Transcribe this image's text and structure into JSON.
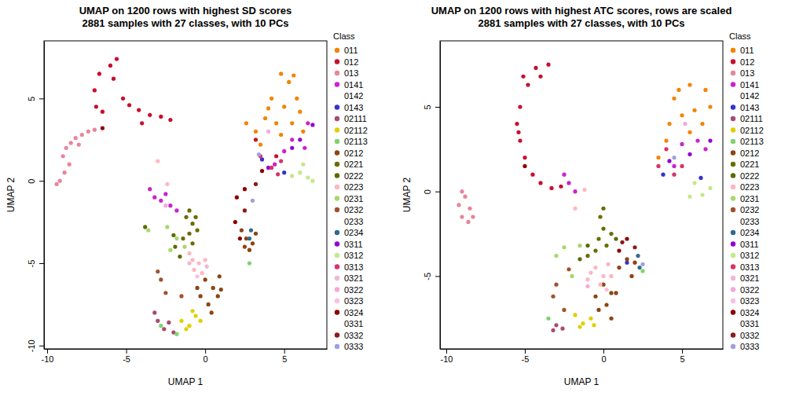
{
  "chart_data": [
    {
      "type": "scatter",
      "title": "UMAP on 1200 rows with highest SD scores",
      "subtitle": "2881 samples with 27 classes, with 10 PCs",
      "x_label": "UMAP 1",
      "y_label": "UMAP 2",
      "legend_title": "Class",
      "legend": "right",
      "marker": "circle",
      "xlim": [
        -10.2,
        7.7
      ],
      "ylim": [
        -10.2,
        8.5
      ],
      "xticks": [
        -10,
        -5,
        0,
        5
      ],
      "yticks": [
        -10,
        -5,
        0,
        5
      ],
      "series": [
        {
          "name": "011",
          "color": "#F28500",
          "x": [
            4.8,
            5.3,
            5.8,
            6.0,
            5.0,
            4.5,
            5.5,
            3.8,
            3.2,
            4.2,
            6.2,
            3.5,
            4.8,
            5.6,
            4.0,
            2.6
          ],
          "values": [
            6.5,
            6.0,
            5.0,
            4.2,
            4.5,
            3.5,
            3.5,
            3.8,
            3.0,
            5.0,
            3.0,
            2.2,
            2.8,
            6.4,
            4.4,
            3.5
          ]
        },
        {
          "name": "012",
          "color": "#C8102E",
          "x": [
            -6.9,
            -7.0,
            -6.7,
            -6.0,
            -5.6,
            -5.8,
            -5.2,
            -4.8,
            -4.2,
            -3.5,
            -2.8,
            -2.2,
            -6.5,
            -4.0,
            3.2,
            4.5
          ],
          "values": [
            4.5,
            5.5,
            6.5,
            7.0,
            7.4,
            6.2,
            5.0,
            4.6,
            4.3,
            4.0,
            3.9,
            3.7,
            4.2,
            3.5,
            2.5,
            1.5
          ]
        },
        {
          "name": "013",
          "color": "#E8859A",
          "x": [
            -9.0,
            -8.8,
            -8.5,
            -8.2,
            -7.8,
            -7.4,
            -7.0,
            -8.6,
            -8.9,
            -9.2,
            -9.4,
            -8.0
          ],
          "values": [
            1.5,
            2.0,
            2.3,
            2.6,
            2.8,
            3.0,
            3.1,
            1.0,
            0.5,
            0.0,
            -0.2,
            2.2
          ]
        },
        {
          "name": "0141",
          "color": "#CC22CC",
          "x": [
            5.5,
            6.3,
            5.0,
            6.5,
            4.4,
            -3.2,
            -2.8,
            -2.2,
            -1.8,
            -3.5,
            -2.5
          ],
          "values": [
            2.5,
            2.0,
            1.8,
            3.5,
            1.0,
            -1.0,
            -1.2,
            -1.5,
            -1.8,
            -0.5,
            -0.8
          ]
        },
        {
          "name": "0142",
          "color": "#FFFFFF",
          "x": [],
          "values": []
        },
        {
          "name": "0143",
          "color": "#3333CC",
          "x": [
            3.6,
            5.0
          ],
          "values": [
            1.3,
            0.5
          ]
        },
        {
          "name": "02111",
          "color": "#AA4A70",
          "x": [
            -3.0,
            -2.6,
            -2.0,
            -3.2,
            -2.3
          ],
          "values": [
            -8.5,
            -9.0,
            -9.2,
            -8.0,
            -8.6
          ]
        },
        {
          "name": "02112",
          "color": "#E0D000",
          "x": [
            -1.5,
            -1.0,
            -0.6,
            -1.2,
            -0.3,
            -0.8
          ],
          "values": [
            -8.5,
            -8.8,
            -8.2,
            -9.0,
            -8.5,
            -7.9
          ]
        },
        {
          "name": "02113",
          "color": "#7FD36F",
          "x": [
            -2.8,
            -1.8,
            2.8
          ],
          "values": [
            -8.8,
            -9.3,
            -5.0
          ]
        },
        {
          "name": "0212",
          "color": "#8B4513",
          "x": [
            0.0,
            0.5,
            0.8,
            0.2,
            -0.3,
            0.9,
            1.0,
            -0.5,
            0.4,
            2.3,
            2.6,
            3.0,
            2.8,
            3.2,
            2.5
          ],
          "values": [
            -6.0,
            -6.5,
            -7.0,
            -7.5,
            -7.0,
            -5.8,
            -6.6,
            -6.5,
            -8.0,
            -3.0,
            -3.5,
            -3.8,
            -4.2,
            -3.2,
            -4.0
          ]
        },
        {
          "name": "0221",
          "color": "#6B6B00",
          "x": [
            -1.2,
            -0.8,
            -1.0,
            -0.5,
            -1.4,
            -0.8,
            -1.0,
            -0.6
          ],
          "values": [
            -2.2,
            -2.6,
            -3.2,
            -3.0,
            -3.5,
            -3.8,
            -1.8,
            -2.2
          ]
        },
        {
          "name": "0222",
          "color": "#5C6B00",
          "x": [
            -1.9,
            -2.0,
            -1.6,
            -3.8
          ],
          "values": [
            -4.0,
            -3.3,
            -4.6,
            -2.8
          ]
        },
        {
          "name": "0223",
          "color": "#FFB6C1",
          "x": [
            -0.8,
            -0.4,
            -0.7,
            0.0,
            -1.0,
            -0.2,
            -2.4,
            -3.0
          ],
          "values": [
            -4.8,
            -5.0,
            -5.4,
            -4.8,
            -4.4,
            -5.6,
            -0.2,
            1.2
          ]
        },
        {
          "name": "0231",
          "color": "#A6D96A",
          "x": [
            -1.8,
            -2.2,
            -1.3,
            -3.6,
            -2.4
          ],
          "values": [
            -3.5,
            -4.2,
            -4.0,
            -3.0,
            -2.8
          ]
        },
        {
          "name": "0232",
          "color": "#A0522D",
          "x": [
            -2.8,
            -3.0,
            -1.5,
            -2.5
          ],
          "values": [
            -6.0,
            -5.5,
            -7.0,
            -6.8
          ]
        },
        {
          "name": "0233",
          "color": "#FFFFFF",
          "x": [],
          "values": []
        },
        {
          "name": "0234",
          "color": "#2E6B8E",
          "x": [
            2.8,
            2.9
          ],
          "values": [
            -3.5,
            -3.0
          ]
        },
        {
          "name": "0311",
          "color": "#9400D3",
          "x": [
            5.5,
            6.0,
            4.0,
            6.8
          ],
          "values": [
            2.0,
            2.5,
            0.8,
            3.4
          ]
        },
        {
          "name": "0312",
          "color": "#C5E88A",
          "x": [
            6.0,
            6.5,
            5.5,
            6.8,
            6.2
          ],
          "values": [
            0.5,
            0.2,
            0.3,
            0.0,
            1.0
          ]
        },
        {
          "name": "0313",
          "color": "#D6336C",
          "x": [
            3.5,
            4.2,
            4.8,
            4.6
          ],
          "values": [
            1.5,
            0.8,
            1.2,
            0.4
          ]
        },
        {
          "name": "0321",
          "color": "#F4B6D0",
          "x": [
            -1.0,
            0.1
          ],
          "values": [
            -5.0,
            -5.2
          ]
        },
        {
          "name": "0322",
          "color": "#F7A8D8",
          "x": [
            -2.5,
            4.0
          ],
          "values": [
            -1.5,
            3.0
          ]
        },
        {
          "name": "0323",
          "color": "#F9C0E0",
          "x": [
            -0.5
          ],
          "values": [
            -5.8
          ]
        },
        {
          "name": "0324",
          "color": "#8B0000",
          "x": [
            2.0,
            2.5,
            2.2,
            1.9,
            -6.5,
            3.6
          ],
          "values": [
            -1.0,
            -0.5,
            -3.5,
            -2.5,
            3.2,
            0.6
          ]
        },
        {
          "name": "0331",
          "color": "#FFFFFF",
          "x": [],
          "values": []
        },
        {
          "name": "0332",
          "color": "#8B1A1A",
          "x": [
            3.2,
            2.5
          ],
          "values": [
            -0.2,
            -1.8
          ]
        },
        {
          "name": "0333",
          "color": "#9F9FE0",
          "x": [
            3.0,
            3.4
          ],
          "values": [
            -1.2,
            1.6
          ]
        }
      ]
    },
    {
      "type": "scatter",
      "title": "UMAP on 1200 rows with highest ATC scores, rows are scaled",
      "subtitle": "2881 samples with 27 classes, with 10 PCs",
      "x_label": "UMAP 1",
      "y_label": "UMAP 2",
      "legend_title": "Class",
      "legend": "right",
      "marker": "circle",
      "xlim": [
        -10.4,
        7.6
      ],
      "ylim": [
        -9.3,
        8.9
      ],
      "xticks": [
        -10,
        -5,
        0,
        5
      ],
      "yticks": [
        -5,
        0,
        5
      ],
      "series": [
        {
          "name": "011",
          "color": "#F28500",
          "x": [
            4.5,
            5.5,
            6.5,
            6.8,
            5.0,
            4.2,
            4.0,
            5.8,
            6.3,
            4.8,
            3.5,
            5.5
          ],
          "values": [
            5.5,
            6.3,
            6.0,
            5.0,
            4.5,
            4.0,
            3.0,
            4.8,
            4.0,
            6.0,
            2.0,
            3.5
          ]
        },
        {
          "name": "012",
          "color": "#C8102E",
          "x": [
            -4.3,
            -3.5,
            -4.8,
            -5.3,
            -5.5,
            -5.3,
            -5.0,
            -4.5,
            -4.0,
            -3.3,
            -2.7,
            -5.1,
            -4.0,
            -5.4
          ],
          "values": [
            7.3,
            7.5,
            6.3,
            5.0,
            4.0,
            3.0,
            2.0,
            1.0,
            0.5,
            0.2,
            0.3,
            6.8,
            6.8,
            3.5
          ]
        },
        {
          "name": "013",
          "color": "#E8859A",
          "x": [
            -9.0,
            -9.2,
            -9.0,
            -8.6,
            -8.3,
            -8.8,
            -8.5
          ],
          "values": [
            0.0,
            -0.8,
            -1.5,
            -1.8,
            -1.5,
            -0.3,
            -1.0
          ]
        },
        {
          "name": "0141",
          "color": "#CC22CC",
          "x": [
            5.0,
            6.0,
            6.5,
            4.5,
            -2.2,
            -1.8,
            -2.5
          ],
          "values": [
            2.8,
            3.0,
            2.5,
            1.5,
            0.5,
            0.0,
            1.0
          ]
        },
        {
          "name": "0142",
          "color": "#FFFFFF",
          "x": [],
          "values": []
        },
        {
          "name": "0143",
          "color": "#3333CC",
          "x": [
            3.8,
            6.2,
            1.5
          ],
          "values": [
            1.0,
            0.8,
            -4.2
          ]
        },
        {
          "name": "02111",
          "color": "#AA4A70",
          "x": [
            -3.0,
            -2.6,
            -3.2
          ],
          "values": [
            -7.9,
            -8.1,
            -8.2
          ]
        },
        {
          "name": "02112",
          "color": "#E0D000",
          "x": [
            -1.8,
            -1.3,
            -0.8,
            -1.5,
            -0.6
          ],
          "values": [
            -7.3,
            -7.8,
            -7.5,
            -8.0,
            -7.9
          ]
        },
        {
          "name": "02113",
          "color": "#7FD36F",
          "x": [
            -3.5,
            2.5
          ],
          "values": [
            -7.5,
            -4.7
          ]
        },
        {
          "name": "0212",
          "color": "#8B4513",
          "x": [
            0.0,
            0.5,
            0.2,
            -0.3,
            1.0,
            1.5,
            2.0,
            1.8,
            0.8,
            -0.5,
            0.5
          ],
          "values": [
            -5.5,
            -6.0,
            -6.7,
            -7.0,
            -4.5,
            -4.0,
            -4.2,
            -5.0,
            -6.0,
            -6.2,
            -7.5
          ]
        },
        {
          "name": "0221",
          "color": "#6B6B00",
          "x": [
            -0.2,
            0.0,
            -0.3,
            0.2,
            -0.5,
            0.5,
            0.0,
            -1.0
          ],
          "values": [
            -1.5,
            -2.2,
            -2.8,
            -3.2,
            -3.5,
            -2.5,
            -1.0,
            -3.8
          ]
        },
        {
          "name": "0222",
          "color": "#5C6B00",
          "x": [
            -1.0,
            -1.5,
            0.8
          ],
          "values": [
            -3.2,
            -4.0,
            -2.8
          ]
        },
        {
          "name": "0223",
          "color": "#FFB6C1",
          "x": [
            -0.5,
            0.0,
            0.5,
            -1.0,
            -0.2,
            -1.8,
            -1.2
          ],
          "values": [
            -4.5,
            -5.0,
            -5.0,
            -5.2,
            -5.5,
            -1.0,
            0.1
          ]
        },
        {
          "name": "0231",
          "color": "#A6D96A",
          "x": [
            -2.5,
            -3.0,
            -2.0,
            -1.5
          ],
          "values": [
            -3.3,
            -3.8,
            -5.0,
            -3.2
          ]
        },
        {
          "name": "0232",
          "color": "#A0522D",
          "x": [
            -3.0,
            -3.2,
            -2.5,
            -2.2
          ],
          "values": [
            -5.5,
            -6.2,
            -7.0,
            -4.6
          ]
        },
        {
          "name": "0233",
          "color": "#FFFFFF",
          "x": [],
          "values": []
        },
        {
          "name": "0234",
          "color": "#2E6B8E",
          "x": [
            2.3,
            2.2
          ],
          "values": [
            -4.5,
            -3.8
          ]
        },
        {
          "name": "0311",
          "color": "#9400D3",
          "x": [
            5.5,
            6.8,
            4.2
          ],
          "values": [
            2.2,
            3.0,
            1.8
          ]
        },
        {
          "name": "0312",
          "color": "#C5E88A",
          "x": [
            5.8,
            6.3,
            5.5,
            6.8
          ],
          "values": [
            0.5,
            -0.2,
            -0.3,
            0.2
          ]
        },
        {
          "name": "0313",
          "color": "#D6336C",
          "x": [
            3.5,
            4.5,
            5.0,
            4.0
          ],
          "values": [
            1.5,
            1.0,
            1.5,
            2.5
          ]
        },
        {
          "name": "0321",
          "color": "#F4B6D0",
          "x": [
            -0.8,
            0.3
          ],
          "values": [
            -4.8,
            -4.3
          ]
        },
        {
          "name": "0322",
          "color": "#F7A8D8",
          "x": [
            -1.0,
            5.2
          ],
          "values": [
            -5.6,
            4.0
          ]
        },
        {
          "name": "0323",
          "color": "#F9C0E0",
          "x": [
            0.2
          ],
          "values": [
            -5.8
          ]
        },
        {
          "name": "0324",
          "color": "#8B0000",
          "x": [
            1.0,
            1.5,
            -5.0
          ],
          "values": [
            -3.5,
            -2.8,
            1.5
          ]
        },
        {
          "name": "0331",
          "color": "#FFFFFF",
          "x": [],
          "values": []
        },
        {
          "name": "0332",
          "color": "#8B1A1A",
          "x": [
            1.2,
            2.0
          ],
          "values": [
            -3.0,
            -3.3
          ]
        },
        {
          "name": "0333",
          "color": "#9F9FE0",
          "x": [
            2.5,
            4.5
          ],
          "values": [
            -4.3,
            2.0
          ]
        }
      ]
    }
  ]
}
